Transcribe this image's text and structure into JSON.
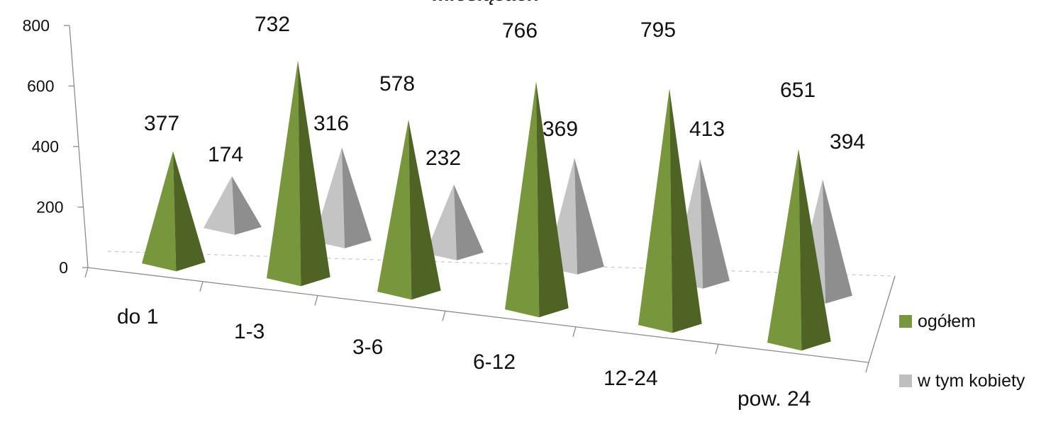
{
  "chart_data": {
    "type": "bar",
    "title": "miesiącach",
    "categories": [
      "do 1",
      "1-3",
      "3-6",
      "6-12",
      "12-24",
      "pow. 24"
    ],
    "series": [
      {
        "name": "ogółem",
        "values": [
          377,
          732,
          578,
          766,
          795,
          651
        ],
        "color": "#77973d"
      },
      {
        "name": "w tym kobiety",
        "values": [
          174,
          316,
          232,
          369,
          413,
          394
        ],
        "color": "#bfbfbf"
      }
    ],
    "yticks": [
      "0",
      "200",
      "400",
      "600",
      "800"
    ],
    "ylim": [
      0,
      800
    ],
    "xlabel": "",
    "ylabel": "",
    "shape": "3d-pyramid",
    "legend_position": "right"
  }
}
